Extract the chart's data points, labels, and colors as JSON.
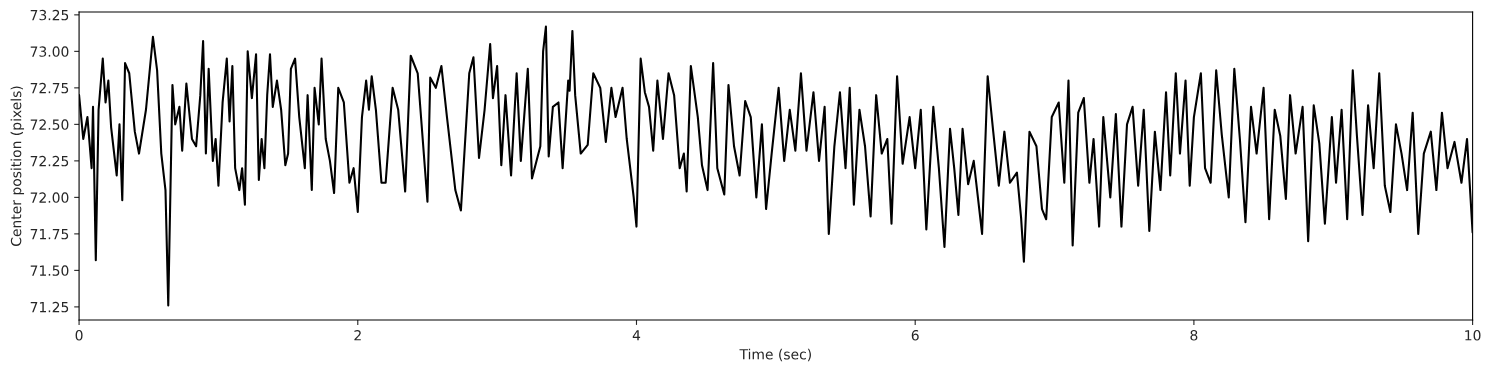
{
  "chart_data": {
    "type": "line",
    "xlabel": "Time (sec)",
    "ylabel": "Center position (pixels)",
    "xlim": [
      0,
      10
    ],
    "xticks": [
      0,
      2,
      4,
      6,
      8,
      10
    ],
    "ylim": [
      71.16,
      73.27
    ],
    "yticks": [
      {
        "value": 71.25,
        "label": "71.25"
      },
      {
        "value": 71.5,
        "label": "71.50"
      },
      {
        "value": 71.75,
        "label": "71.75"
      },
      {
        "value": 72.0,
        "label": "72.00"
      },
      {
        "value": 72.25,
        "label": "72.25"
      },
      {
        "value": 72.5,
        "label": "72.50"
      },
      {
        "value": 72.75,
        "label": "72.75"
      },
      {
        "value": 73.0,
        "label": "73.00"
      },
      {
        "value": 73.25,
        "label": "73.25"
      }
    ],
    "grid": false,
    "marker": "none",
    "line_style": "solid",
    "series": [
      {
        "color": "#000000",
        "x": [
          0.0,
          0.03,
          0.06,
          0.09,
          0.1,
          0.12,
          0.14,
          0.17,
          0.19,
          0.21,
          0.23,
          0.27,
          0.29,
          0.31,
          0.33,
          0.36,
          0.4,
          0.43,
          0.48,
          0.53,
          0.56,
          0.59,
          0.62,
          0.64,
          0.67,
          0.69,
          0.72,
          0.74,
          0.77,
          0.81,
          0.84,
          0.87,
          0.89,
          0.91,
          0.93,
          0.96,
          0.98,
          1.0,
          1.03,
          1.06,
          1.08,
          1.1,
          1.12,
          1.15,
          1.17,
          1.19,
          1.21,
          1.24,
          1.27,
          1.29,
          1.31,
          1.33,
          1.35,
          1.37,
          1.39,
          1.42,
          1.45,
          1.48,
          1.5,
          1.52,
          1.55,
          1.58,
          1.62,
          1.64,
          1.67,
          1.69,
          1.72,
          1.74,
          1.77,
          1.8,
          1.83,
          1.86,
          1.9,
          1.94,
          1.97,
          2.0,
          2.03,
          2.06,
          2.08,
          2.1,
          2.13,
          2.17,
          2.2,
          2.25,
          2.29,
          2.34,
          2.38,
          2.43,
          2.5,
          2.52,
          2.56,
          2.6,
          2.64,
          2.7,
          2.74,
          2.8,
          2.83,
          2.87,
          2.91,
          2.95,
          2.97,
          3.0,
          3.03,
          3.06,
          3.1,
          3.14,
          3.17,
          3.22,
          3.25,
          3.31,
          3.33,
          3.35,
          3.37,
          3.4,
          3.44,
          3.47,
          3.51,
          3.52,
          3.54,
          3.56,
          3.6,
          3.65,
          3.69,
          3.74,
          3.78,
          3.82,
          3.85,
          3.9,
          3.93,
          3.98,
          4.0,
          4.03,
          4.06,
          4.09,
          4.12,
          4.15,
          4.19,
          4.23,
          4.27,
          4.31,
          4.34,
          4.36,
          4.39,
          4.44,
          4.47,
          4.51,
          4.55,
          4.58,
          4.63,
          4.66,
          4.7,
          4.74,
          4.78,
          4.82,
          4.86,
          4.9,
          4.93,
          4.97,
          5.02,
          5.06,
          5.1,
          5.14,
          5.18,
          5.22,
          5.27,
          5.31,
          5.35,
          5.38,
          5.42,
          5.46,
          5.5,
          5.53,
          5.56,
          5.6,
          5.64,
          5.68,
          5.72,
          5.76,
          5.8,
          5.83,
          5.87,
          5.91,
          5.96,
          6.0,
          6.04,
          6.08,
          6.13,
          6.17,
          6.21,
          6.25,
          6.28,
          6.31,
          6.34,
          6.38,
          6.42,
          6.48,
          6.52,
          6.56,
          6.6,
          6.64,
          6.68,
          6.73,
          6.76,
          6.78,
          6.82,
          6.87,
          6.91,
          6.94,
          6.98,
          7.03,
          7.07,
          7.1,
          7.13,
          7.17,
          7.21,
          7.25,
          7.28,
          7.32,
          7.35,
          7.4,
          7.44,
          7.48,
          7.52,
          7.56,
          7.6,
          7.64,
          7.68,
          7.72,
          7.76,
          7.8,
          7.83,
          7.87,
          7.9,
          7.94,
          7.97,
          8.0,
          8.05,
          8.08,
          8.12,
          8.16,
          8.2,
          8.25,
          8.29,
          8.33,
          8.37,
          8.41,
          8.45,
          8.5,
          8.54,
          8.58,
          8.62,
          8.66,
          8.69,
          8.73,
          8.78,
          8.82,
          8.86,
          8.9,
          8.94,
          8.99,
          9.02,
          9.06,
          9.1,
          9.14,
          9.17,
          9.21,
          9.25,
          9.29,
          9.33,
          9.37,
          9.41,
          9.45,
          9.49,
          9.53,
          9.57,
          9.61,
          9.65,
          9.7,
          9.74,
          9.78,
          9.82,
          9.87,
          9.92,
          9.96,
          10.0
        ],
        "values": [
          72.7,
          72.4,
          72.55,
          72.2,
          72.62,
          71.57,
          72.6,
          72.95,
          72.65,
          72.8,
          72.48,
          72.15,
          72.5,
          71.98,
          72.92,
          72.85,
          72.45,
          72.3,
          72.6,
          73.1,
          72.87,
          72.3,
          72.05,
          71.26,
          72.77,
          72.5,
          72.62,
          72.32,
          72.78,
          72.4,
          72.35,
          72.7,
          73.07,
          72.3,
          72.88,
          72.25,
          72.4,
          72.08,
          72.65,
          72.95,
          72.52,
          72.9,
          72.2,
          72.05,
          72.2,
          71.95,
          73.0,
          72.68,
          72.98,
          72.12,
          72.4,
          72.2,
          72.7,
          72.98,
          72.62,
          72.8,
          72.6,
          72.22,
          72.3,
          72.88,
          72.95,
          72.55,
          72.2,
          72.7,
          72.05,
          72.75,
          72.5,
          72.95,
          72.4,
          72.25,
          72.03,
          72.75,
          72.65,
          72.1,
          72.2,
          71.9,
          72.55,
          72.8,
          72.6,
          72.83,
          72.6,
          72.1,
          72.1,
          72.75,
          72.6,
          72.04,
          72.97,
          72.85,
          71.97,
          72.82,
          72.75,
          72.9,
          72.55,
          72.05,
          71.91,
          72.85,
          72.96,
          72.27,
          72.6,
          73.05,
          72.68,
          72.9,
          72.22,
          72.7,
          72.15,
          72.85,
          72.25,
          72.88,
          72.13,
          72.35,
          73.0,
          73.17,
          72.28,
          72.62,
          72.65,
          72.2,
          72.8,
          72.73,
          73.14,
          72.7,
          72.3,
          72.36,
          72.85,
          72.75,
          72.38,
          72.75,
          72.55,
          72.75,
          72.4,
          72.0,
          71.8,
          72.95,
          72.72,
          72.62,
          72.32,
          72.8,
          72.4,
          72.85,
          72.7,
          72.2,
          72.3,
          72.04,
          72.9,
          72.55,
          72.22,
          72.05,
          72.92,
          72.2,
          72.02,
          72.77,
          72.35,
          72.15,
          72.66,
          72.55,
          72.0,
          72.5,
          71.92,
          72.3,
          72.75,
          72.25,
          72.6,
          72.32,
          72.85,
          72.32,
          72.72,
          72.25,
          72.62,
          71.75,
          72.35,
          72.72,
          72.2,
          72.75,
          71.95,
          72.6,
          72.35,
          71.87,
          72.7,
          72.3,
          72.4,
          71.82,
          72.83,
          72.23,
          72.55,
          72.2,
          72.6,
          71.78,
          72.62,
          72.2,
          71.66,
          72.47,
          72.2,
          71.88,
          72.47,
          72.09,
          72.25,
          71.75,
          72.83,
          72.45,
          72.08,
          72.45,
          72.1,
          72.17,
          71.86,
          71.56,
          72.45,
          72.35,
          71.92,
          71.85,
          72.55,
          72.65,
          72.1,
          72.8,
          71.67,
          72.58,
          72.68,
          72.1,
          72.4,
          71.8,
          72.55,
          72.0,
          72.57,
          71.8,
          72.5,
          72.62,
          72.08,
          72.6,
          71.77,
          72.45,
          72.05,
          72.72,
          72.15,
          72.85,
          72.3,
          72.8,
          72.08,
          72.55,
          72.85,
          72.2,
          72.1,
          72.87,
          72.43,
          72.0,
          72.88,
          72.4,
          71.83,
          72.62,
          72.3,
          72.75,
          71.85,
          72.6,
          72.42,
          71.99,
          72.7,
          72.3,
          72.62,
          71.7,
          72.63,
          72.37,
          71.82,
          72.55,
          72.1,
          72.6,
          71.85,
          72.87,
          72.42,
          71.88,
          72.63,
          72.2,
          72.85,
          72.08,
          71.9,
          72.5,
          72.3,
          72.05,
          72.58,
          71.75,
          72.3,
          72.45,
          72.05,
          72.58,
          72.2,
          72.38,
          72.1,
          72.4,
          71.76
        ]
      }
    ]
  }
}
